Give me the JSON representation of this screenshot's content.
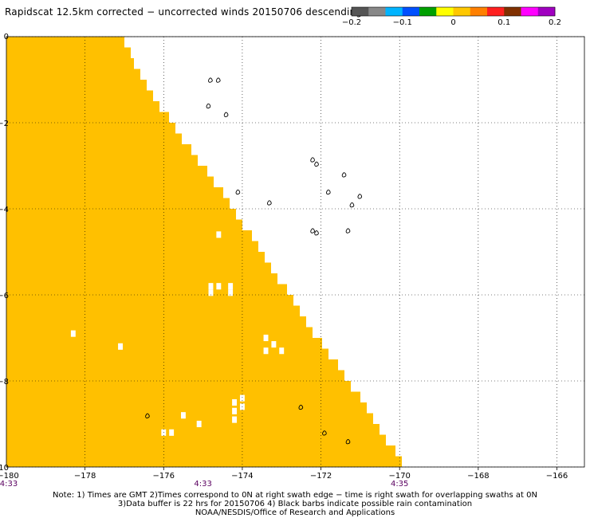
{
  "title": "Rapidscat 12.5km corrected − uncorrected winds 20150706 descending",
  "colors": {
    "swath": "#ffc000",
    "background": "#ffffff",
    "grid": "#000000",
    "time_label": "#5a0060"
  },
  "colorbar": {
    "segments": [
      "#555555",
      "#888888",
      "#00b4ff",
      "#0050ff",
      "#00a000",
      "#ffff00",
      "#ffc800",
      "#ff8000",
      "#ff2020",
      "#803000",
      "#ff00ff",
      "#a000c0"
    ],
    "tick_labels": [
      "−0.2",
      "−0.1",
      "0",
      "0.1",
      "0.2"
    ]
  },
  "chart_data": {
    "type": "heatmap",
    "title": "Rapidscat 12.5km corrected − uncorrected winds 20150706 descending",
    "xlim": [
      -180,
      -165.3
    ],
    "ylim": [
      -10,
      0
    ],
    "x_ticks": [
      -178,
      -176,
      -174,
      -172,
      -170,
      -168,
      -166
    ],
    "x_tick_labels": [
      "−178",
      "−176",
      "−174",
      "−172",
      "−170",
      "−168",
      "−166"
    ],
    "x_end_label": "−180",
    "y_ticks": [
      0,
      -2,
      -4,
      -6,
      -8,
      -10
    ],
    "y_tick_labels": [
      "0",
      "−2",
      "−4",
      "−6",
      "−8",
      "−10"
    ],
    "grid": true,
    "swath_fill_value": 0,
    "swath_right_edge": [
      [
        -177.0,
        0.0
      ],
      [
        -176.8,
        -0.4
      ],
      [
        -176.5,
        -0.9
      ],
      [
        -176.0,
        -1.6
      ],
      [
        -175.5,
        -2.3
      ],
      [
        -175.0,
        -2.9
      ],
      [
        -174.5,
        -3.5
      ],
      [
        -174.0,
        -4.2
      ],
      [
        -173.5,
        -4.9
      ],
      [
        -173.0,
        -5.6
      ],
      [
        -172.5,
        -6.3
      ],
      [
        -172.0,
        -7.0
      ],
      [
        -171.5,
        -7.6
      ],
      [
        -171.0,
        -8.3
      ],
      [
        -170.5,
        -9.0
      ],
      [
        -170.0,
        -9.7
      ],
      [
        -169.8,
        -10.0
      ]
    ],
    "missing_cells": [
      [
        -178.3,
        -6.9
      ],
      [
        -177.1,
        -7.2
      ],
      [
        -174.6,
        -4.6
      ],
      [
        -174.8,
        -5.8
      ],
      [
        -174.6,
        -5.8
      ],
      [
        -174.3,
        -5.8
      ],
      [
        -174.8,
        -5.95
      ],
      [
        -174.3,
        -5.95
      ],
      [
        -173.4,
        -7.0
      ],
      [
        -173.2,
        -7.15
      ],
      [
        -173.4,
        -7.3
      ],
      [
        -173.0,
        -7.3
      ],
      [
        -174.2,
        -8.5
      ],
      [
        -174.0,
        -8.4
      ],
      [
        -174.0,
        -8.6
      ],
      [
        -174.2,
        -8.7
      ],
      [
        -174.2,
        -8.9
      ],
      [
        -175.1,
        -9.0
      ],
      [
        -175.5,
        -8.8
      ],
      [
        -176.0,
        -9.2
      ],
      [
        -175.8,
        -9.2
      ]
    ],
    "rain_flags": [
      [
        -174.8,
        -1.0
      ],
      [
        -174.6,
        -1.0
      ],
      [
        -174.85,
        -1.6
      ],
      [
        -174.4,
        -1.8
      ],
      [
        -173.3,
        -3.85
      ],
      [
        -174.1,
        -3.6
      ],
      [
        -172.2,
        -2.85
      ],
      [
        -172.1,
        -2.95
      ],
      [
        -171.4,
        -3.2
      ],
      [
        -171.8,
        -3.6
      ],
      [
        -171.0,
        -3.7
      ],
      [
        -171.2,
        -3.9
      ],
      [
        -172.2,
        -4.5
      ],
      [
        -172.1,
        -4.55
      ],
      [
        -171.3,
        -4.5
      ],
      [
        -172.5,
        -8.6
      ],
      [
        -176.4,
        -8.8
      ],
      [
        -171.9,
        -9.2
      ],
      [
        -171.3,
        -9.4
      ]
    ],
    "time_labels": [
      {
        "text": "4:33",
        "lon": -180
      },
      {
        "text": "4:33",
        "lon": -175
      },
      {
        "text": "4:35",
        "lon": -170
      }
    ]
  },
  "notes": [
    "Note: 1) Times are GMT 2)Times correspond to 0N at right swath edge − time is right swath for overlapping swaths at 0N",
    "3)Data buffer is 22 hrs for 20150706 4) Black barbs indicate possible rain contamination",
    "NOAA/NESDIS/Office of Research and Applications"
  ]
}
